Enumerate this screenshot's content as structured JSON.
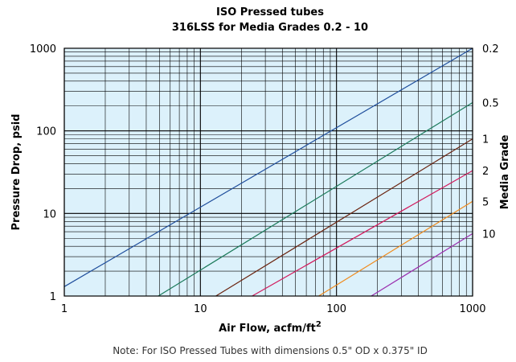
{
  "chart_data": {
    "type": "line",
    "title": "ISO Pressed tubes",
    "subtitle": "316LSS for Media Grades 0.2 - 10",
    "xlabel": "Air Flow, acfm/ft",
    "xlabel_superscript": "2",
    "ylabel": "Pressure Drop, psid",
    "y2label": "Media Grade",
    "xscale": "log",
    "yscale": "log",
    "xlim": [
      1,
      1000
    ],
    "ylim": [
      1,
      1000
    ],
    "x_ticks": [
      "1",
      "10",
      "100",
      "1000"
    ],
    "y_ticks": [
      "1",
      "10",
      "100",
      "1000"
    ],
    "grid": true,
    "background": "#dcf1fb",
    "grid_color": "#000000",
    "series": [
      {
        "name": "0.2",
        "color": "#1f4e9c",
        "x": [
          1,
          1000
        ],
        "y": [
          1.3,
          1000
        ]
      },
      {
        "name": "0.5",
        "color": "#1b7a5a",
        "x": [
          4.9,
          1000
        ],
        "y": [
          1,
          220
        ]
      },
      {
        "name": "1",
        "color": "#6b2410",
        "x": [
          13,
          1000
        ],
        "y": [
          1,
          80
        ]
      },
      {
        "name": "2",
        "color": "#d21a5c",
        "x": [
          24,
          1000
        ],
        "y": [
          1,
          33
        ]
      },
      {
        "name": "5",
        "color": "#f08a1c",
        "x": [
          74,
          1000
        ],
        "y": [
          1,
          14
        ]
      },
      {
        "name": "10",
        "color": "#9b2fae",
        "x": [
          180,
          1000
        ],
        "y": [
          1,
          5.7
        ]
      }
    ],
    "note": "Note:  For ISO Pressed Tubes with dimensions 0.5\" OD x 0.375\" ID"
  }
}
